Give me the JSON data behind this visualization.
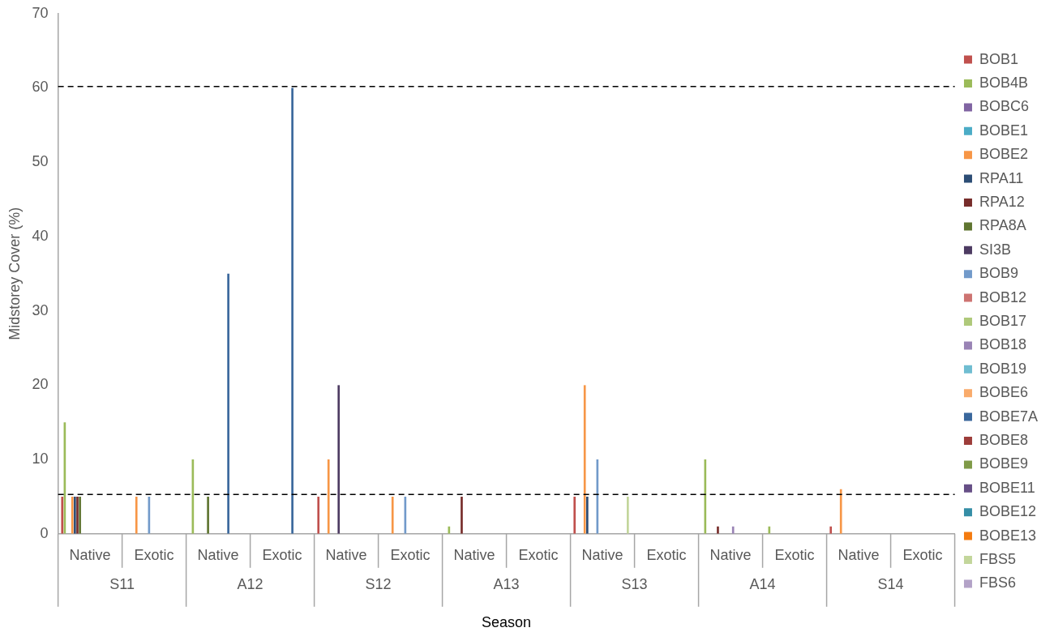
{
  "chart_data": {
    "type": "bar",
    "xlabel": "Season",
    "ylabel": "Midstorey Cover (%)",
    "categories": [
      "Native",
      "Exotic",
      "Native",
      "Exotic",
      "Native",
      "Exotic",
      "Native",
      "Exotic",
      "Native",
      "Exotic",
      "Native",
      "Exotic",
      "Native",
      "Exotic"
    ],
    "annotations": [
      "S11",
      "A12",
      "S12",
      "A13",
      "S13",
      "A14",
      "S14"
    ],
    "ylim": [
      0,
      70
    ],
    "yticks": [
      0,
      10,
      20,
      30,
      40,
      50,
      60,
      70
    ],
    "grid": false,
    "legend": "right",
    "ref_lines": [
      {
        "axis": "y",
        "value": 60.2,
        "color": "#000000",
        "line_style": "dashed"
      },
      {
        "axis": "y",
        "value": 5.3,
        "color": "#000000",
        "line_style": "dashed"
      }
    ],
    "series": [
      {
        "name": "BOB1",
        "color": "#c0504d",
        "values": [
          5,
          0,
          0,
          0,
          5,
          0,
          0,
          0,
          5,
          0,
          0,
          0,
          1,
          0
        ]
      },
      {
        "name": "BOB4B",
        "color": "#9bbb59",
        "values": [
          15,
          0,
          10,
          0,
          0,
          0,
          1,
          0,
          0,
          0,
          10,
          1,
          0,
          0
        ]
      },
      {
        "name": "BOBC6",
        "color": "#8064a2",
        "values": [
          0,
          0,
          0,
          0,
          0,
          0,
          0,
          0,
          0,
          0,
          0,
          0,
          0,
          0
        ]
      },
      {
        "name": "BOBE1",
        "color": "#4bacc6",
        "values": [
          0,
          0,
          0,
          0,
          0,
          0,
          0,
          0,
          0,
          0,
          0,
          0,
          0,
          0
        ]
      },
      {
        "name": "BOBE2",
        "color": "#f79646",
        "values": [
          5,
          5,
          0,
          0,
          10,
          5,
          0,
          0,
          20,
          0,
          0,
          0,
          6,
          0
        ]
      },
      {
        "name": "RPA11",
        "color": "#2c4d75",
        "values": [
          5,
          0,
          0,
          0,
          0,
          0,
          0,
          0,
          5,
          0,
          0,
          0,
          0,
          0
        ]
      },
      {
        "name": "RPA12",
        "color": "#772c2a",
        "values": [
          5,
          0,
          0,
          0,
          0,
          0,
          5,
          0,
          0,
          0,
          1,
          0,
          0,
          0
        ]
      },
      {
        "name": "RPA8A",
        "color": "#5f7530",
        "values": [
          5,
          0,
          5,
          0,
          0,
          0,
          0,
          0,
          0,
          0,
          0,
          0,
          0,
          0
        ]
      },
      {
        "name": "SI3B",
        "color": "#4d3b62",
        "values": [
          0,
          0,
          0,
          0,
          20,
          0,
          0,
          0,
          0,
          0,
          0,
          0,
          0,
          0
        ]
      },
      {
        "name": "BOB9",
        "color": "#729aca",
        "values": [
          0,
          5,
          0,
          0,
          0,
          5,
          0,
          0,
          10,
          0,
          0,
          0,
          0,
          0
        ]
      },
      {
        "name": "BOB12",
        "color": "#cd7371",
        "values": [
          0,
          0,
          0,
          0,
          0,
          0,
          0,
          0,
          0,
          0,
          0,
          0,
          0,
          0
        ]
      },
      {
        "name": "BOB17",
        "color": "#afc97a",
        "values": [
          0,
          0,
          0,
          0,
          0,
          0,
          0,
          0,
          0,
          0,
          0,
          0,
          0,
          0
        ]
      },
      {
        "name": "BOB18",
        "color": "#9983b5",
        "values": [
          0,
          0,
          0,
          0,
          0,
          0,
          0,
          0,
          0,
          0,
          1,
          0,
          0,
          0
        ]
      },
      {
        "name": "BOB19",
        "color": "#6fbdd1",
        "values": [
          0,
          0,
          0,
          0,
          0,
          0,
          0,
          0,
          0,
          0,
          0,
          0,
          0,
          0
        ]
      },
      {
        "name": "BOBE6",
        "color": "#f9ab6b",
        "values": [
          0,
          0,
          0,
          0,
          0,
          0,
          0,
          0,
          0,
          0,
          0,
          0,
          0,
          0
        ]
      },
      {
        "name": "BOBE7A",
        "color": "#3a679c",
        "values": [
          0,
          0,
          35,
          60,
          0,
          0,
          0,
          0,
          0,
          0,
          0,
          0,
          0,
          0
        ]
      },
      {
        "name": "BOBE8",
        "color": "#9d3d3a",
        "values": [
          0,
          0,
          0,
          0,
          0,
          0,
          0,
          0,
          0,
          0,
          0,
          0,
          0,
          0
        ]
      },
      {
        "name": "BOBE9",
        "color": "#7f9a48",
        "values": [
          0,
          0,
          0,
          0,
          0,
          0,
          0,
          0,
          0,
          0,
          0,
          0,
          0,
          0
        ]
      },
      {
        "name": "BOBE11",
        "color": "#664f86",
        "values": [
          0,
          0,
          0,
          0,
          0,
          0,
          0,
          0,
          0,
          0,
          0,
          0,
          0,
          0
        ]
      },
      {
        "name": "BOBE12",
        "color": "#358ea6",
        "values": [
          0,
          0,
          0,
          0,
          0,
          0,
          0,
          0,
          0,
          0,
          0,
          0,
          0,
          0
        ]
      },
      {
        "name": "BOBE13",
        "color": "#f47b0f",
        "values": [
          0,
          0,
          0,
          0,
          0,
          0,
          0,
          0,
          0,
          0,
          0,
          0,
          0,
          0
        ]
      },
      {
        "name": "FBS5",
        "color": "#c3d69b",
        "values": [
          0,
          0,
          0,
          0,
          0,
          0,
          0,
          0,
          5,
          0,
          0,
          0,
          0,
          0
        ]
      },
      {
        "name": "FBS6",
        "color": "#b3a2c7",
        "values": [
          0,
          0,
          0,
          0,
          0,
          0,
          0,
          0,
          0,
          0,
          0,
          0,
          0,
          0
        ]
      }
    ]
  }
}
